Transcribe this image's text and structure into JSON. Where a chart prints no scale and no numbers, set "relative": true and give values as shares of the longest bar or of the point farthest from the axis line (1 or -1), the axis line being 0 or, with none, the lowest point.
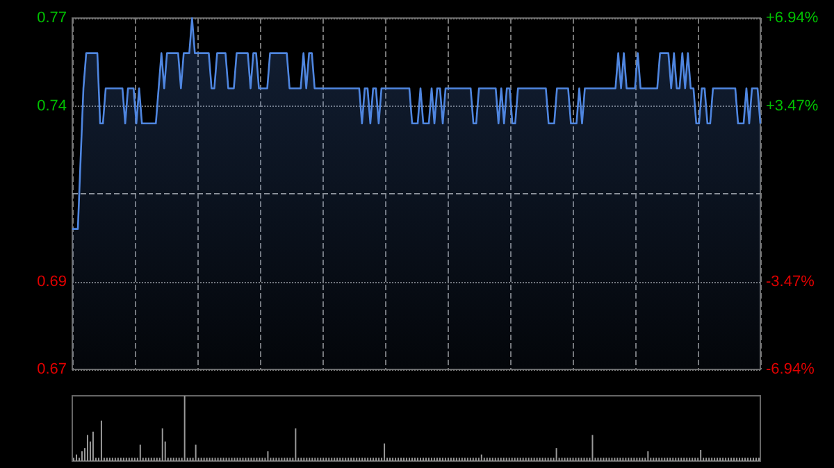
{
  "chart_data": [
    {
      "type": "area",
      "categories": [
        null,
        null,
        null,
        null,
        null,
        null,
        null,
        null,
        null,
        null,
        null,
        null,
        null,
        null,
        null,
        null,
        null,
        null,
        null,
        null,
        null,
        null,
        null,
        null,
        null,
        null,
        null,
        null,
        null,
        null,
        null,
        null,
        null,
        null,
        null,
        null,
        null,
        null,
        null,
        null,
        null,
        null,
        null,
        null,
        null,
        null,
        null,
        null,
        null,
        null,
        null,
        null,
        null,
        null,
        null,
        null,
        null,
        null,
        null,
        null,
        null,
        null,
        null,
        null,
        null,
        null,
        null,
        null,
        null,
        null,
        null,
        null,
        null,
        null,
        null,
        null,
        null,
        null,
        null,
        null,
        null,
        null,
        null,
        null,
        null,
        null,
        null,
        null,
        null,
        null,
        null,
        null,
        null,
        null,
        null,
        null,
        null,
        null,
        null,
        null,
        null,
        null,
        null,
        null,
        null,
        null,
        null,
        null,
        null,
        null,
        null,
        null,
        null,
        null,
        null,
        null,
        null,
        null,
        null,
        null,
        null,
        null,
        null,
        null,
        null,
        null,
        null,
        null,
        null,
        null,
        null,
        null,
        null,
        null,
        null,
        null,
        null,
        null,
        null,
        null,
        null,
        null,
        null,
        null,
        null,
        null,
        null,
        null,
        null,
        null,
        null,
        null,
        null,
        null,
        null,
        null,
        null,
        null,
        null,
        null,
        null,
        null,
        null,
        null,
        null,
        null,
        null,
        null,
        null,
        null,
        null,
        null,
        null,
        null,
        null,
        null,
        null,
        null,
        null,
        null,
        null,
        null,
        null,
        null,
        null,
        null,
        null,
        null,
        null,
        null,
        null,
        null,
        null,
        null,
        null,
        null,
        null,
        null,
        null,
        null,
        null,
        null,
        null,
        null,
        null,
        null,
        null,
        null,
        null,
        null,
        null,
        null,
        null,
        null,
        null,
        null,
        null,
        null,
        null,
        null,
        null,
        null,
        null,
        null,
        null,
        null,
        null,
        null,
        null,
        null,
        null,
        null,
        null,
        null,
        null,
        null,
        null,
        null,
        null,
        null,
        null,
        null,
        null,
        null,
        null,
        null,
        null,
        null
      ],
      "series": [
        {
          "color": "#4f86e0",
          "values": [
            0.71,
            0.71,
            0.71,
            0.73,
            0.75,
            0.76,
            0.76,
            0.76,
            0.76,
            0.76,
            0.74,
            0.74,
            0.75,
            0.75,
            0.75,
            0.75,
            0.75,
            0.75,
            0.75,
            0.74,
            0.75,
            0.75,
            0.75,
            0.74,
            0.75,
            0.74,
            0.74,
            0.74,
            0.74,
            0.74,
            0.74,
            0.75,
            0.76,
            0.75,
            0.76,
            0.76,
            0.76,
            0.76,
            0.76,
            0.75,
            0.76,
            0.76,
            0.76,
            0.77,
            0.76,
            0.76,
            0.76,
            0.76,
            0.76,
            0.76,
            0.75,
            0.75,
            0.76,
            0.76,
            0.76,
            0.76,
            0.75,
            0.75,
            0.75,
            0.76,
            0.76,
            0.76,
            0.76,
            0.76,
            0.75,
            0.76,
            0.76,
            0.75,
            0.75,
            0.75,
            0.75,
            0.76,
            0.76,
            0.76,
            0.76,
            0.76,
            0.76,
            0.76,
            0.75,
            0.75,
            0.75,
            0.75,
            0.75,
            0.76,
            0.75,
            0.76,
            0.76,
            0.75,
            0.75,
            0.75,
            0.75,
            0.75,
            0.75,
            0.75,
            0.75,
            0.75,
            0.75,
            0.75,
            0.75,
            0.75,
            0.75,
            0.75,
            0.75,
            0.75,
            0.74,
            0.75,
            0.75,
            0.74,
            0.75,
            0.75,
            0.74,
            0.75,
            0.75,
            0.75,
            0.75,
            0.75,
            0.75,
            0.75,
            0.75,
            0.75,
            0.75,
            0.75,
            0.74,
            0.74,
            0.74,
            0.75,
            0.74,
            0.74,
            0.74,
            0.75,
            0.74,
            0.75,
            0.75,
            0.74,
            0.75,
            0.75,
            0.75,
            0.75,
            0.75,
            0.75,
            0.75,
            0.75,
            0.75,
            0.75,
            0.74,
            0.74,
            0.75,
            0.75,
            0.75,
            0.75,
            0.75,
            0.75,
            0.75,
            0.74,
            0.75,
            0.74,
            0.75,
            0.75,
            0.74,
            0.74,
            0.75,
            0.75,
            0.75,
            0.75,
            0.75,
            0.75,
            0.75,
            0.75,
            0.75,
            0.75,
            0.75,
            0.74,
            0.74,
            0.74,
            0.75,
            0.75,
            0.75,
            0.75,
            0.75,
            0.74,
            0.74,
            0.74,
            0.75,
            0.74,
            0.75,
            0.75,
            0.75,
            0.75,
            0.75,
            0.75,
            0.75,
            0.75,
            0.75,
            0.75,
            0.75,
            0.75,
            0.76,
            0.75,
            0.76,
            0.75,
            0.75,
            0.75,
            0.75,
            0.76,
            0.75,
            0.75,
            0.75,
            0.75,
            0.75,
            0.75,
            0.75,
            0.76,
            0.76,
            0.76,
            0.76,
            0.75,
            0.76,
            0.75,
            0.75,
            0.76,
            0.75,
            0.76,
            0.75,
            0.75,
            0.74,
            0.74,
            0.75,
            0.75,
            0.74,
            0.74,
            0.75,
            0.75,
            0.75,
            0.75,
            0.75,
            0.75,
            0.75,
            0.75,
            0.75,
            0.74,
            0.74,
            0.74,
            0.75,
            0.74,
            0.75,
            0.75,
            0.75,
            0.74
          ]
        }
      ],
      "ylim": [
        0.67,
        0.77
      ],
      "yticks": [
        0.67,
        {
          "value": 0.695,
          "label": "0.69"
        },
        {
          "value": 0.745,
          "label": "0.74"
        },
        0.77
      ],
      "y2lim": [
        -6.94,
        6.94
      ],
      "y2ticks": [
        {
          "value": -6.94,
          "label": "-6.94%"
        },
        {
          "value": -3.47,
          "label": "-3.47%"
        },
        {
          "value": 3.47,
          "label": "+3.47%"
        },
        {
          "value": 6.94,
          "label": "+6.94%"
        }
      ],
      "ref_lines": [
        {
          "axis": "y",
          "value": 0.72,
          "line_style": "dashed",
          "color": "#8a9099"
        }
      ],
      "grid": true,
      "tick_labels": "y"
    },
    {
      "type": "bar",
      "relative": true,
      "tick_labels": false,
      "categories": [
        null,
        null,
        null,
        null,
        null,
        null,
        null,
        null,
        null,
        null,
        null,
        null,
        null,
        null,
        null,
        null,
        null,
        null,
        null,
        null,
        null,
        null,
        null,
        null,
        null,
        null,
        null,
        null,
        null,
        null,
        null,
        null,
        null,
        null,
        null,
        null,
        null,
        null,
        null,
        null,
        null,
        null,
        null,
        null,
        null,
        null,
        null,
        null,
        null,
        null,
        null,
        null,
        null,
        null,
        null,
        null,
        null,
        null,
        null,
        null,
        null,
        null,
        null,
        null,
        null,
        null,
        null,
        null,
        null,
        null,
        null,
        null,
        null,
        null,
        null,
        null,
        null,
        null,
        null,
        null,
        null,
        null,
        null,
        null,
        null,
        null,
        null,
        null,
        null,
        null,
        null,
        null,
        null,
        null,
        null,
        null,
        null,
        null,
        null,
        null,
        null,
        null,
        null,
        null,
        null,
        null,
        null,
        null,
        null,
        null,
        null,
        null,
        null,
        null,
        null,
        null,
        null,
        null,
        null,
        null,
        null,
        null,
        null,
        null,
        null,
        null,
        null,
        null,
        null,
        null,
        null,
        null,
        null,
        null,
        null,
        null,
        null,
        null,
        null,
        null,
        null,
        null,
        null,
        null,
        null,
        null,
        null,
        null,
        null,
        null,
        null,
        null,
        null,
        null,
        null,
        null,
        null,
        null,
        null,
        null,
        null,
        null,
        null,
        null,
        null,
        null,
        null,
        null,
        null,
        null,
        null,
        null,
        null,
        null,
        null,
        null,
        null,
        null,
        null,
        null,
        null,
        null,
        null,
        null,
        null,
        null,
        null,
        null,
        null,
        null,
        null,
        null,
        null,
        null,
        null,
        null,
        null,
        null,
        null,
        null,
        null,
        null,
        null,
        null,
        null,
        null,
        null,
        null,
        null,
        null,
        null,
        null,
        null,
        null,
        null,
        null,
        null,
        null,
        null,
        null,
        null,
        null,
        null,
        null,
        null,
        null,
        null,
        null,
        null,
        null,
        null,
        null,
        null,
        null,
        null,
        null,
        null,
        null,
        null,
        null,
        null,
        null,
        null,
        null,
        null,
        null,
        null,
        null
      ],
      "color": "#9a9a9a",
      "values": [
        0.05,
        0.1,
        0.05,
        0.15,
        0.2,
        0.4,
        0.3,
        0.45,
        0.05,
        0.05,
        0.62,
        0.05,
        0.05,
        0.05,
        0.05,
        0.05,
        0.05,
        0.05,
        0.05,
        0.05,
        0.05,
        0.05,
        0.05,
        0.05,
        0.25,
        0.05,
        0.05,
        0.05,
        0.05,
        0.05,
        0.05,
        0.05,
        0.5,
        0.3,
        0.05,
        0.05,
        0.05,
        0.05,
        0.05,
        0.05,
        1,
        0.05,
        0.05,
        0.05,
        0.25,
        0.05,
        0.05,
        0.05,
        0.05,
        0.05,
        0.05,
        0.05,
        0.05,
        0.05,
        0.05,
        0.05,
        0.05,
        0.05,
        0.05,
        0.05,
        0.05,
        0.05,
        0.05,
        0.05,
        0.05,
        0.05,
        0.05,
        0.05,
        0.05,
        0.05,
        0.15,
        0.05,
        0.05,
        0.05,
        0.05,
        0.05,
        0.05,
        0.05,
        0.05,
        0.05,
        0.5,
        0.05,
        0.05,
        0.05,
        0.05,
        0.05,
        0.05,
        0.05,
        0.05,
        0.05,
        0.05,
        0.05,
        0.05,
        0.05,
        0.05,
        0.05,
        0.05,
        0.05,
        0.05,
        0.05,
        0.05,
        0.05,
        0.05,
        0.05,
        0.05,
        0.05,
        0.05,
        0.05,
        0.05,
        0.05,
        0.05,
        0.05,
        0.27,
        0.05,
        0.05,
        0.05,
        0.05,
        0.05,
        0.05,
        0.05,
        0.05,
        0.05,
        0.05,
        0.05,
        0.05,
        0.05,
        0.05,
        0.05,
        0.05,
        0.05,
        0.05,
        0.05,
        0.05,
        0.05,
        0.05,
        0.05,
        0.05,
        0.05,
        0.05,
        0.05,
        0.05,
        0.05,
        0.05,
        0.05,
        0.05,
        0.05,
        0.05,
        0.1,
        0.05,
        0.05,
        0.05,
        0.05,
        0.05,
        0.05,
        0.05,
        0.05,
        0.05,
        0.05,
        0.05,
        0.05,
        0.05,
        0.05,
        0.05,
        0.05,
        0.05,
        0.05,
        0.05,
        0.05,
        0.05,
        0.05,
        0.05,
        0.05,
        0.05,
        0.05,
        0.2,
        0.05,
        0.05,
        0.05,
        0.05,
        0.05,
        0.05,
        0.05,
        0.05,
        0.05,
        0.05,
        0.05,
        0.05,
        0.4,
        0.05,
        0.05,
        0.05,
        0.05,
        0.05,
        0.05,
        0.05,
        0.05,
        0.05,
        0.05,
        0.05,
        0.05,
        0.05,
        0.05,
        0.05,
        0.05,
        0.05,
        0.05,
        0.05,
        0.15,
        0.05,
        0.05,
        0.05,
        0.05,
        0.05,
        0.05,
        0.05,
        0.05,
        0.05,
        0.05,
        0.05,
        0.05,
        0.05,
        0.05,
        0.05,
        0.05,
        0.05,
        0.05,
        0.17,
        0.05,
        0.05,
        0.05,
        0.05,
        0.05,
        0.05,
        0.05,
        0.05,
        0.05,
        0.05,
        0.05,
        0.05,
        0.05,
        0.05,
        0.05,
        0.05,
        0.05,
        0.05,
        0.05,
        0.05,
        0.05
      ]
    }
  ]
}
